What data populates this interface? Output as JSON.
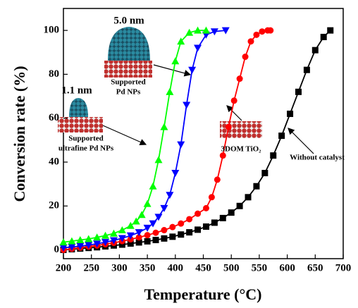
{
  "chart_data": {
    "type": "line",
    "xlabel": "Temperature (°C)",
    "ylabel": "Conversion rate (%)",
    "xlim": [
      200,
      700
    ],
    "ylim": [
      -4,
      110
    ],
    "xticks": [
      200,
      250,
      300,
      350,
      400,
      450,
      500,
      550,
      600,
      650,
      700
    ],
    "yticks": [
      0,
      20,
      40,
      60,
      80,
      100
    ],
    "series": [
      {
        "color": "#000000",
        "marker": "square",
        "x": [
          200,
          215,
          230,
          245,
          260,
          275,
          290,
          305,
          320,
          335,
          350,
          365,
          380,
          395,
          410,
          425,
          440,
          455,
          470,
          485,
          500,
          515,
          530,
          545,
          560,
          575,
          590,
          605,
          620,
          635,
          650,
          665,
          677
        ],
        "values": [
          0,
          0.3,
          0.6,
          0.9,
          1.2,
          1.6,
          2,
          2.4,
          2.9,
          3.4,
          3.9,
          4.5,
          5.2,
          6,
          7,
          8,
          9.2,
          10.6,
          12.4,
          14.5,
          17,
          20,
          24,
          29,
          35,
          43,
          52,
          62,
          72,
          82,
          91,
          97,
          100
        ]
      },
      {
        "color": "#ff0000",
        "marker": "circle",
        "x": [
          200,
          215,
          230,
          245,
          260,
          275,
          290,
          305,
          320,
          335,
          350,
          365,
          380,
          395,
          410,
          425,
          440,
          455,
          465,
          475,
          485,
          495,
          505,
          515,
          525,
          535,
          545,
          555,
          565,
          570
        ],
        "values": [
          0,
          0.5,
          1,
          1.5,
          2,
          2.6,
          3.2,
          4,
          4.8,
          5.7,
          6.7,
          7.8,
          9,
          10.4,
          12,
          14,
          16.5,
          19,
          24,
          32,
          43,
          56,
          68,
          78,
          88,
          95,
          98,
          99.5,
          100,
          100
        ]
      },
      {
        "color": "#0000ff",
        "marker": "triangle-down",
        "x": [
          200,
          215,
          230,
          245,
          260,
          275,
          290,
          305,
          320,
          335,
          350,
          360,
          370,
          380,
          390,
          400,
          410,
          420,
          430,
          440,
          455,
          470,
          490
        ],
        "values": [
          1,
          1.3,
          1.7,
          2.2,
          2.8,
          3.5,
          4.3,
          5.3,
          6.5,
          8,
          10,
          12,
          15,
          19,
          25,
          35,
          48,
          66,
          82,
          92,
          98,
          99.5,
          100
        ]
      },
      {
        "color": "#00ff00",
        "marker": "triangle-up",
        "x": [
          200,
          215,
          230,
          245,
          260,
          275,
          290,
          305,
          320,
          330,
          340,
          350,
          360,
          370,
          380,
          390,
          400,
          410,
          425,
          440,
          455
        ],
        "values": [
          3.5,
          4,
          4.5,
          5,
          5.7,
          6.5,
          7.5,
          9,
          11,
          13,
          16,
          21,
          29,
          41,
          56,
          72,
          86,
          95,
          99,
          100,
          100
        ]
      }
    ],
    "annotations": [
      {
        "lines": [
          "5.0 nm"
        ]
      },
      {
        "lines": [
          "Supported",
          "Pd NPs"
        ]
      },
      {
        "lines": [
          "1.1 nm"
        ]
      },
      {
        "lines": [
          "Supported",
          "ultrafine Pd NPs"
        ]
      },
      {
        "lines": [
          "3DOM TiO₂"
        ]
      },
      {
        "lines": [
          "Without catalyst"
        ]
      }
    ]
  }
}
